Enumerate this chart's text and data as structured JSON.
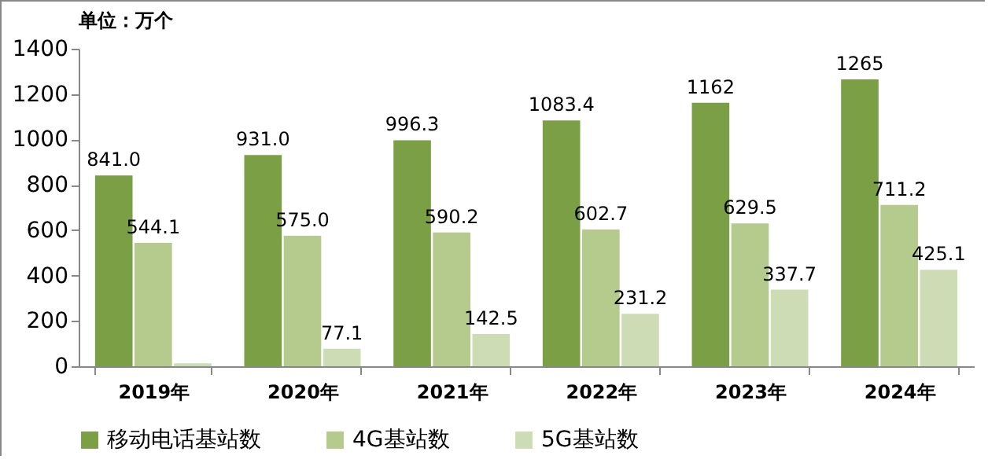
{
  "chart_data": {
    "type": "bar",
    "title": "单位：万个",
    "categories": [
      "2019年",
      "2020年",
      "2021年",
      "2022年",
      "2023年",
      "2024年"
    ],
    "series": [
      {
        "name": "移动电话基站数",
        "color": "#7a9f45",
        "values": [
          841.0,
          931.0,
          996.3,
          1083.4,
          1162,
          1265
        ],
        "value_labels": [
          "841.0",
          "931.0",
          "996.3",
          "1083.4",
          "1162",
          "1265"
        ]
      },
      {
        "name": "4G基站数",
        "color": "#b5cb8d",
        "values": [
          544.1,
          575.0,
          590.2,
          602.7,
          629.5,
          711.2
        ],
        "value_labels": [
          "544.1",
          "575.0",
          "590.2",
          "602.7",
          "629.5",
          "711.2"
        ]
      },
      {
        "name": "5G基站数",
        "color": "#cddcb5",
        "values": [
          13,
          77.1,
          142.5,
          231.2,
          337.7,
          425.1
        ],
        "value_labels": [
          null,
          "77.1",
          "142.5",
          "231.2",
          "337.7",
          "425.1"
        ]
      }
    ],
    "ylim": [
      0,
      1400
    ],
    "yticks": [
      0,
      200,
      400,
      600,
      800,
      1000,
      1200,
      1400
    ],
    "grid": false,
    "legend": "bottom"
  }
}
